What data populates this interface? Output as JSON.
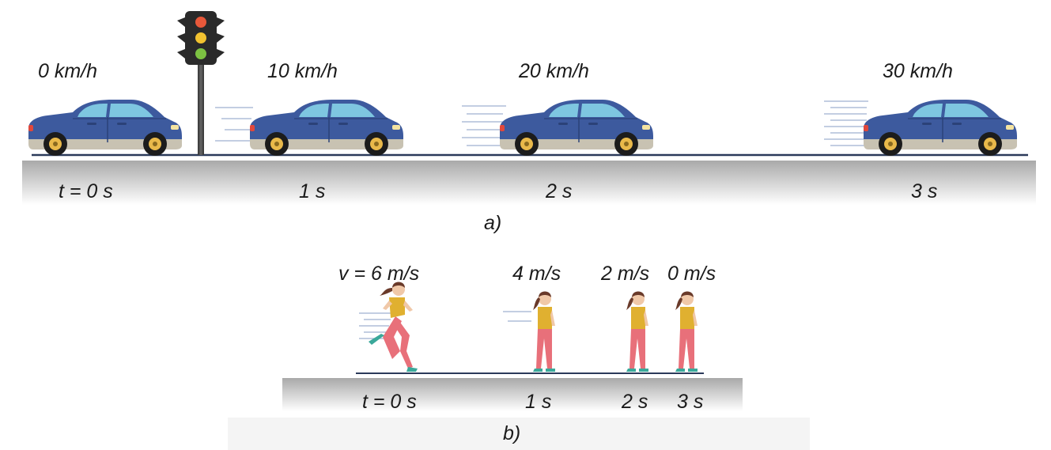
{
  "panel_a": {
    "caption": "a)",
    "cars": [
      {
        "speed": "0 km/h",
        "time": "t = 0 s"
      },
      {
        "speed": "10 km/h",
        "time": "1 s"
      },
      {
        "speed": "20 km/h",
        "time": "2 s"
      },
      {
        "speed": "30 km/h",
        "time": "3 s"
      }
    ]
  },
  "panel_b": {
    "caption": "b)",
    "runners": [
      {
        "speed": "v = 6 m/s",
        "time": "t = 0 s"
      },
      {
        "speed": "4 m/s",
        "time": "1 s"
      },
      {
        "speed": "2 m/s",
        "time": "2 s"
      },
      {
        "speed": "0 m/s",
        "time": "3 s"
      }
    ]
  },
  "colors": {
    "car_body": "#3d5a9e",
    "car_window": "#7ec6e0",
    "ground": "#b8b8b8",
    "runner_shirt": "#e0b030",
    "runner_pants": "#e8707a",
    "runner_shoes": "#3aa89a"
  }
}
